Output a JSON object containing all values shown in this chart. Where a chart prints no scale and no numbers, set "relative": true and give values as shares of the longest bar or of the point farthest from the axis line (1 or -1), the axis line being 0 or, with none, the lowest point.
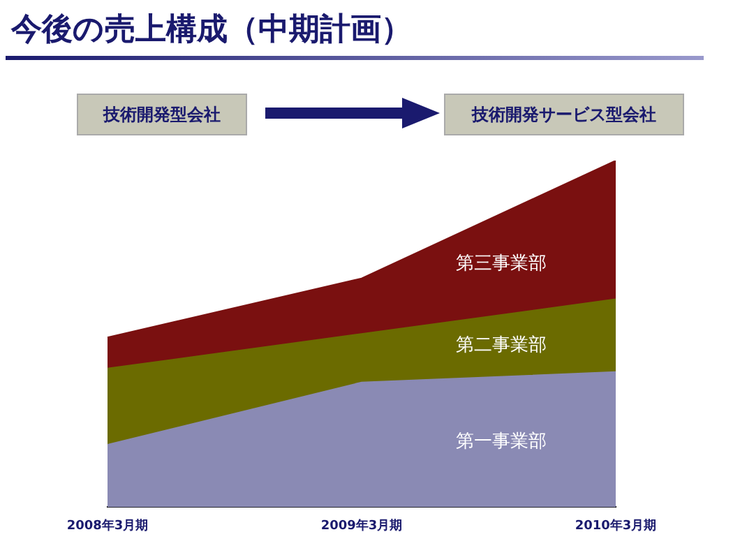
{
  "chart_data": {
    "type": "area",
    "title": "今後の売上構成（中期計画）",
    "relative": true,
    "stacked": true,
    "legend": false,
    "grid": false,
    "categories": [
      "2008年3月期",
      "2009年3月期",
      "2010年3月期"
    ],
    "annotations": [
      "技術開発型会社",
      "技術開発サービス型会社"
    ],
    "series": [
      {
        "name": "第一事業部",
        "color": "#8a8ab4",
        "values": [
          0.18,
          0.36,
          0.39
        ]
      },
      {
        "name": "第二事業部",
        "color": "#6b6b00",
        "values": [
          0.22,
          0.14,
          0.21
        ]
      },
      {
        "name": "第三事業部",
        "color": "#7a1010",
        "values": [
          0.09,
          0.16,
          0.4
        ]
      }
    ]
  }
}
